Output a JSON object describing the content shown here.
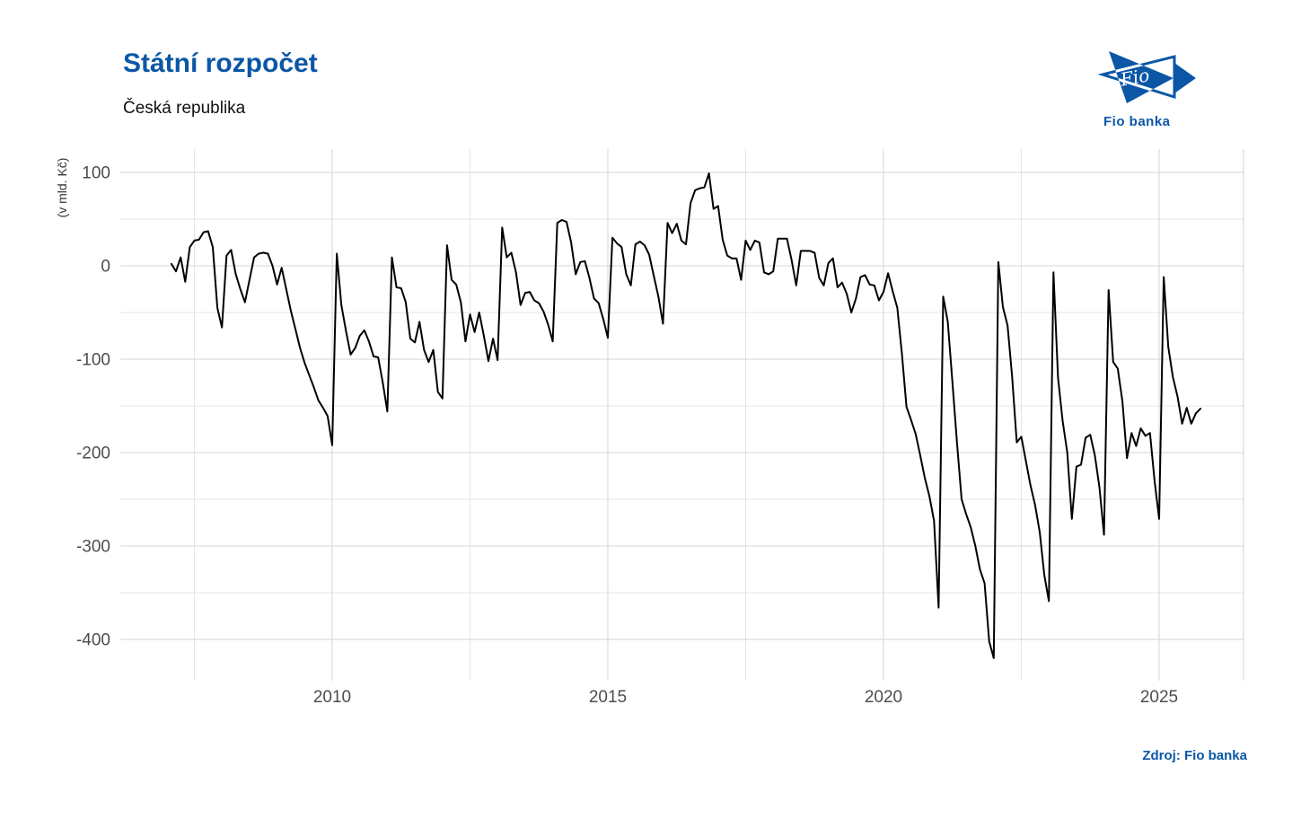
{
  "header": {
    "title": "Státní rozpočet",
    "subtitle": "Česká republika"
  },
  "logo": {
    "monogram": "Fio",
    "caption": "Fio banka"
  },
  "source_label": "Zdroj: Fio banka",
  "colors": {
    "brand_blue": "#0b57a6",
    "line": "#000000",
    "grid_major": "#d6d6d6",
    "grid_minor": "#e4e4e4",
    "tick_label": "#4d4d4d"
  },
  "chart_data": {
    "type": "line",
    "title": "Státní rozpočet",
    "subtitle": "Česká republika",
    "ylabel": "(v mld. Kč)",
    "unit": "mld. Kč",
    "frequency": "monthly",
    "x_tick_labels": [
      "2010",
      "2015",
      "2020",
      "2025"
    ],
    "x_tick_years": [
      2010,
      2015,
      2020,
      2025
    ],
    "x_minor_years": [
      2007.5,
      2012.5,
      2017.5,
      2022.5
    ],
    "y_tick_labels": [
      "100",
      "0",
      "-100",
      "-200",
      "-300",
      "-400"
    ],
    "y_tick_values": [
      100,
      0,
      -100,
      -200,
      -300,
      -400
    ],
    "y_minor_values": [
      50,
      -50,
      -150,
      -250,
      -350
    ],
    "xlim": [
      2006.25,
      2026.5
    ],
    "ylim": [
      -445,
      125
    ],
    "grid": true,
    "legend": false,
    "series": [
      {
        "start": "2007-01",
        "values_by_year": {
          "2007": [
            2,
            -6,
            9,
            -17,
            20,
            27,
            28,
            36,
            37,
            20,
            -45,
            -66
          ],
          "2008": [
            11,
            17,
            -9,
            -25,
            -39,
            -15,
            9,
            13,
            14,
            13,
            0,
            -20
          ],
          "2009": [
            -2,
            -25,
            -48,
            -68,
            -88,
            -104,
            -117,
            -130,
            -144,
            -152,
            -161,
            -192
          ],
          "2010": [
            13,
            -42,
            -70,
            -95,
            -88,
            -75,
            -69,
            -81,
            -97,
            -98,
            -125,
            -156
          ],
          "2011": [
            9,
            -23,
            -24,
            -39,
            -78,
            -82,
            -60,
            -90,
            -103,
            -90,
            -135,
            -142
          ],
          "2012": [
            22,
            -15,
            -20,
            -39,
            -81,
            -52,
            -71,
            -50,
            -75,
            -102,
            -78,
            -101
          ],
          "2013": [
            41,
            9,
            14,
            -7,
            -42,
            -29,
            -28,
            -37,
            -40,
            -49,
            -63,
            -81
          ],
          "2014": [
            46,
            49,
            47,
            25,
            -9,
            4,
            5,
            -13,
            -35,
            -40,
            -57,
            -77
          ],
          "2015": [
            30,
            24,
            20,
            -9,
            -21,
            23,
            26,
            22,
            12,
            -11,
            -33,
            -62
          ],
          "2016": [
            46,
            35,
            45,
            27,
            23,
            67,
            81,
            83,
            84,
            99,
            61,
            64
          ],
          "2017": [
            28,
            11,
            8,
            8,
            -15,
            27,
            17,
            27,
            25,
            -7,
            -9,
            -6
          ],
          "2018": [
            29,
            29,
            29,
            6,
            -21,
            16,
            16,
            16,
            14,
            -13,
            -21,
            3
          ],
          "2019": [
            8,
            -23,
            -18,
            -30,
            -50,
            -35,
            -12,
            -10,
            -20,
            -21,
            -37,
            -28
          ],
          "2020": [
            -8,
            -27,
            -45,
            -94,
            -151,
            -165,
            -180,
            -203,
            -227,
            -247,
            -273,
            -366
          ],
          "2021": [
            -33,
            -60,
            -125,
            -190,
            -250,
            -266,
            -280,
            -300,
            -325,
            -340,
            -402,
            -420
          ],
          "2022": [
            4,
            -44,
            -64,
            -119,
            -189,
            -183,
            -209,
            -235,
            -256,
            -285,
            -331,
            -359
          ],
          "2023": [
            -7,
            -120,
            -166,
            -200,
            -271,
            -215,
            -213,
            -184,
            -181,
            -203,
            -237,
            -288
          ],
          "2024": [
            -26,
            -103,
            -110,
            -145,
            -206,
            -179,
            -193,
            -174,
            -182,
            -179,
            -230,
            -271
          ],
          "2025": [
            -12,
            -87,
            -119,
            -140,
            -169,
            -152,
            -169,
            -158,
            -153
          ]
        }
      }
    ]
  }
}
